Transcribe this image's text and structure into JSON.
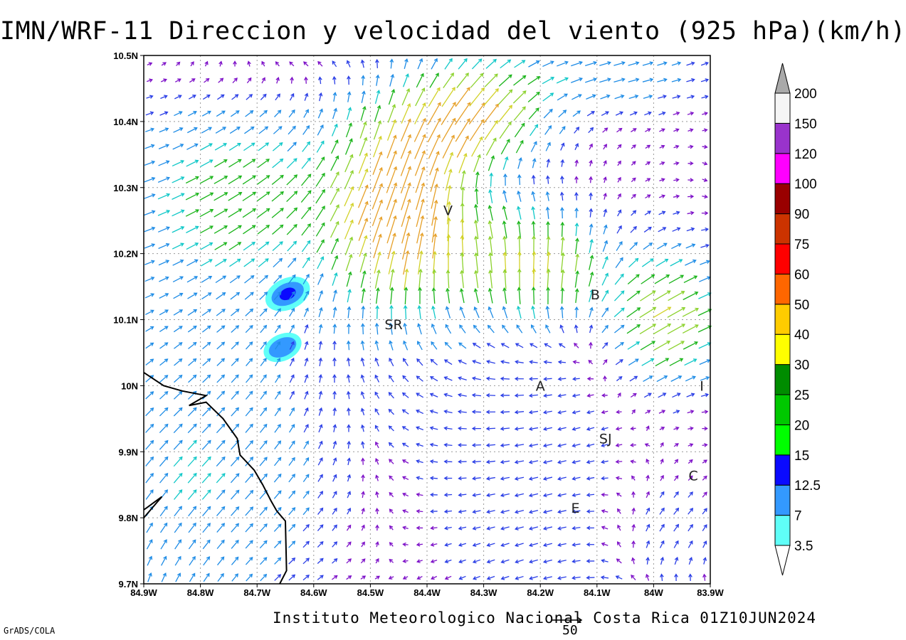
{
  "title": "IMN/WRF-11 Direccion y velocidad del viento (925 hPa)(km/h)",
  "footer": "Instituto Meteorologico Nacional Costa Rica 01Z10JUN2024",
  "credit": "GrADS/COLA",
  "reference_vector": {
    "label": "50",
    "speed_kmh": 50
  },
  "map": {
    "lon_range": [
      -84.9,
      -83.9
    ],
    "lat_range": [
      9.7,
      10.5
    ],
    "grid": "dotted",
    "lon_ticks": [
      {
        "value": -84.9,
        "label": "84.9W"
      },
      {
        "value": -84.8,
        "label": "84.8W"
      },
      {
        "value": -84.7,
        "label": "84.7W"
      },
      {
        "value": -84.6,
        "label": "84.6W"
      },
      {
        "value": -84.5,
        "label": "84.5W"
      },
      {
        "value": -84.4,
        "label": "84.4W"
      },
      {
        "value": -84.3,
        "label": "84.3W"
      },
      {
        "value": -84.2,
        "label": "84.2W"
      },
      {
        "value": -84.1,
        "label": "84.1W"
      },
      {
        "value": -84.0,
        "label": "84W"
      },
      {
        "value": -83.9,
        "label": "83.9W"
      }
    ],
    "lat_ticks": [
      {
        "value": 10.5,
        "label": "10.5N"
      },
      {
        "value": 10.4,
        "label": "10.4N"
      },
      {
        "value": 10.3,
        "label": "10.3N"
      },
      {
        "value": 10.2,
        "label": "10.2N"
      },
      {
        "value": 10.1,
        "label": "10.1N"
      },
      {
        "value": 10.0,
        "label": "10N"
      },
      {
        "value": 9.9,
        "label": "9.9N"
      },
      {
        "value": 9.8,
        "label": "9.8N"
      },
      {
        "value": 9.7,
        "label": "9.7N"
      }
    ],
    "cities": [
      {
        "label": "V",
        "lon": -84.363,
        "lat": 10.266
      },
      {
        "label": "SR",
        "lon": -84.459,
        "lat": 10.093
      },
      {
        "label": "B",
        "lon": -84.103,
        "lat": 10.138
      },
      {
        "label": "A",
        "lon": -84.2,
        "lat": 10.0
      },
      {
        "label": "I",
        "lon": -83.915,
        "lat": 10.0
      },
      {
        "label": "SJ",
        "lon": -84.085,
        "lat": 9.92
      },
      {
        "label": "C",
        "lon": -83.93,
        "lat": 9.864
      },
      {
        "label": "E",
        "lon": -84.138,
        "lat": 9.815
      }
    ],
    "coastline": [
      [
        -84.9,
        10.02
      ],
      [
        -84.865,
        10.0
      ],
      [
        -84.832,
        9.992
      ],
      [
        -84.79,
        9.985
      ],
      [
        -84.82,
        9.97
      ],
      [
        -84.79,
        9.975
      ],
      [
        -84.76,
        9.95
      ],
      [
        -84.735,
        9.92
      ],
      [
        -84.73,
        9.895
      ],
      [
        -84.705,
        9.872
      ],
      [
        -84.69,
        9.85
      ],
      [
        -84.675,
        9.825
      ],
      [
        -84.665,
        9.81
      ],
      [
        -84.65,
        9.795
      ],
      [
        -84.648,
        9.72
      ],
      [
        -84.66,
        9.7
      ]
    ],
    "coastline_inlet": [
      [
        -84.9,
        9.8
      ],
      [
        -84.868,
        9.832
      ],
      [
        -84.895,
        9.815
      ],
      [
        -84.9,
        9.812
      ]
    ],
    "shaded_features": [
      {
        "lon": -84.646,
        "lat": 10.139,
        "level": "12.5"
      },
      {
        "lon": -84.655,
        "lat": 10.058,
        "level": "7"
      }
    ]
  },
  "colorbar": {
    "bins": [
      {
        "label": "3.5",
        "color": "#5ffff8"
      },
      {
        "label": "7",
        "color": "#3399ff"
      },
      {
        "label": "12.5",
        "color": "#0a0aff"
      },
      {
        "label": "15",
        "color": "#00ff00"
      },
      {
        "label": "20",
        "color": "#00c800"
      },
      {
        "label": "25",
        "color": "#008c00"
      },
      {
        "label": "30",
        "color": "#ffff00"
      },
      {
        "label": "40",
        "color": "#ffcc00"
      },
      {
        "label": "50",
        "color": "#ff6600"
      },
      {
        "label": "60",
        "color": "#ff0000"
      },
      {
        "label": "75",
        "color": "#cc3300"
      },
      {
        "label": "90",
        "color": "#990000"
      },
      {
        "label": "100",
        "color": "#ff00ff"
      },
      {
        "label": "120",
        "color": "#9933cc"
      },
      {
        "label": "150",
        "color": "#f5f5f5"
      },
      {
        "label": "200",
        "color": "#a9a9a9"
      }
    ],
    "arrow_speed_colors": [
      {
        "max": 3.5,
        "color": "#7d10c8"
      },
      {
        "max": 7,
        "color": "#2a3ee6"
      },
      {
        "max": 12.5,
        "color": "#1e8ce6"
      },
      {
        "max": 15,
        "color": "#10c8c8"
      },
      {
        "max": 20,
        "color": "#19b419"
      },
      {
        "max": 25,
        "color": "#8cd22d"
      },
      {
        "max": 30,
        "color": "#d2d228"
      },
      {
        "max": 40,
        "color": "#e6a028"
      },
      {
        "max": 55,
        "color": "#e65a2a"
      },
      {
        "max": 999,
        "color": "#d20a78"
      }
    ]
  }
}
